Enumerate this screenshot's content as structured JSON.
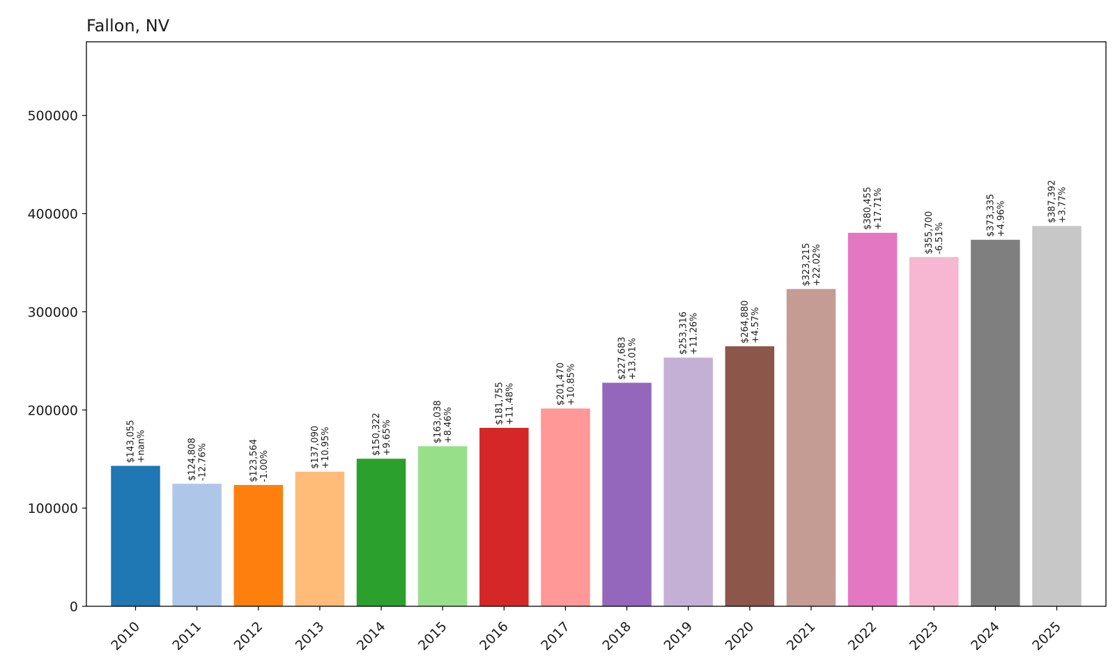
{
  "chart_data": {
    "type": "bar",
    "title": "Fallon, NV",
    "xlabel": "",
    "ylabel": "",
    "categories": [
      "2010",
      "2011",
      "2012",
      "2013",
      "2014",
      "2015",
      "2016",
      "2017",
      "2018",
      "2019",
      "2020",
      "2021",
      "2022",
      "2023",
      "2024",
      "2025"
    ],
    "values": [
      143055,
      124808,
      123564,
      137090,
      150322,
      163038,
      181755,
      201470,
      227683,
      253316,
      264880,
      323215,
      380455,
      355700,
      373335,
      387392
    ],
    "value_labels": [
      "$143,055",
      "$124,808",
      "$123,564",
      "$137,090",
      "$150,322",
      "$163,038",
      "$181,755",
      "$201,470",
      "$227,683",
      "$253,316",
      "$264,880",
      "$323,215",
      "$380,455",
      "$355,700",
      "$373,335",
      "$387,392"
    ],
    "change_labels": [
      "+nan%",
      "-12.76%",
      "-1.00%",
      "+10.95%",
      "+9.65%",
      "+8.46%",
      "+11.48%",
      "+10.85%",
      "+13.01%",
      "+11.26%",
      "+4.57%",
      "+22.02%",
      "+17.71%",
      "-6.51%",
      "+4.96%",
      "+3.77%"
    ],
    "colors": [
      "#1f77b4",
      "#aec7e8",
      "#ff7f0e",
      "#ffbb78",
      "#2ca02c",
      "#98df8a",
      "#d62728",
      "#ff9896",
      "#9467bd",
      "#c5b0d5",
      "#8c564b",
      "#c49c94",
      "#e377c2",
      "#f7b6d2",
      "#7f7f7f",
      "#c7c7c7"
    ],
    "ylim": [
      0,
      575000
    ],
    "yticks": [
      0,
      100000,
      200000,
      300000,
      400000,
      500000
    ],
    "ytick_labels": [
      "0",
      "100000",
      "200000",
      "300000",
      "400000",
      "500000"
    ],
    "grid": false,
    "legend": "none"
  }
}
